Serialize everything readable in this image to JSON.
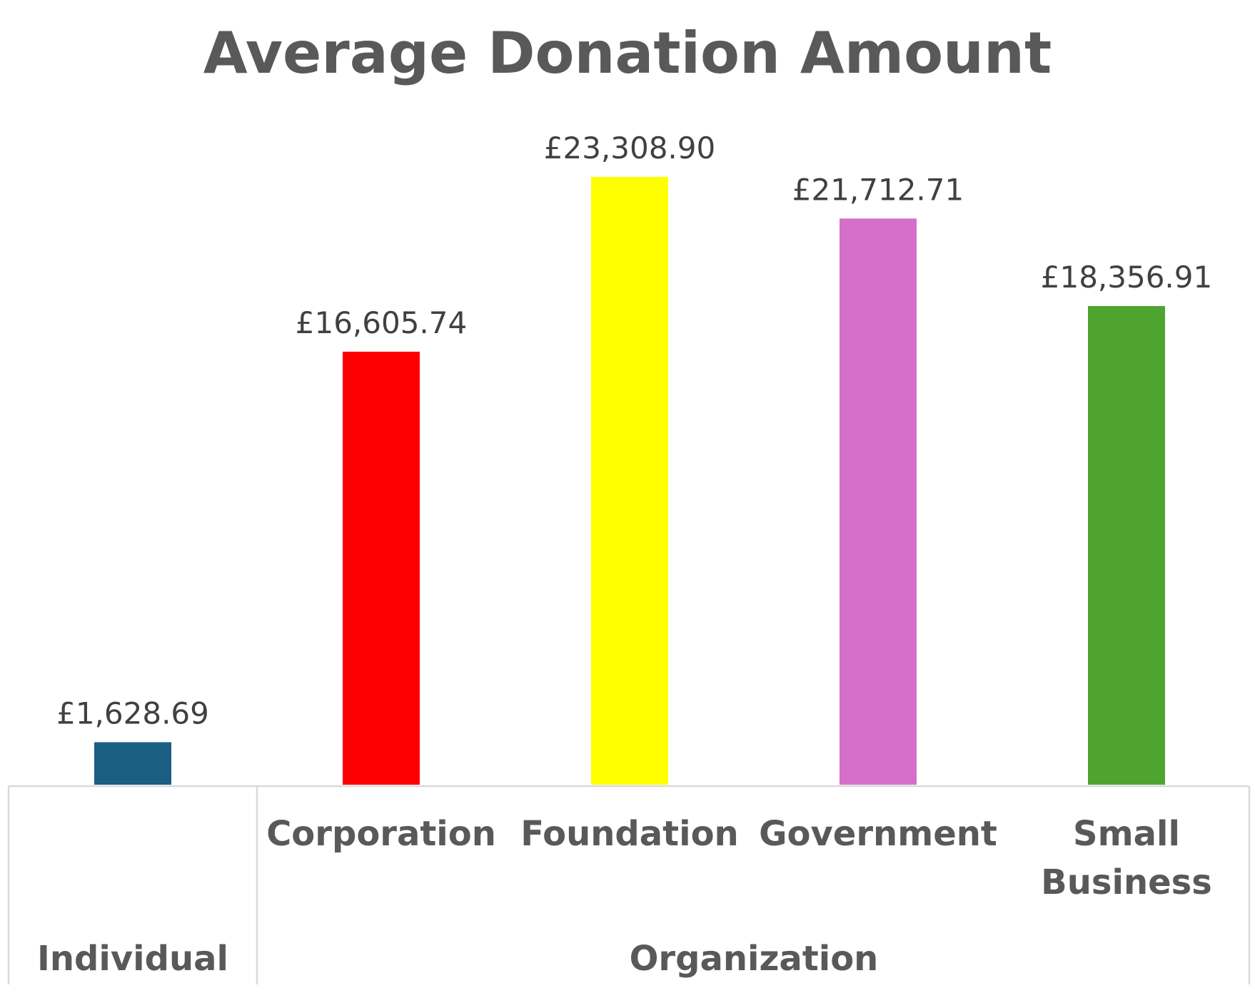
{
  "chart_data": {
    "type": "bar",
    "title": "Average Donation Amount",
    "xlabel": "",
    "ylabel": "",
    "ylim": [
      0,
      24000
    ],
    "grid": false,
    "legend": "none",
    "groups": [
      {
        "label": "Individual",
        "categories": [
          ""
        ]
      },
      {
        "label": "Organization",
        "categories": [
          "Corporation",
          "Foundation",
          "Government",
          "Small Business"
        ]
      }
    ],
    "categories": [
      "",
      "Corporation",
      "Foundation",
      "Government",
      "Small Business"
    ],
    "category_lines": [
      [],
      [
        "Corporation"
      ],
      [
        "Foundation"
      ],
      [
        "Government"
      ],
      [
        "Small",
        "Business"
      ]
    ],
    "values": [
      1628.69,
      16605.74,
      23308.9,
      21712.71,
      18356.91
    ],
    "data_labels": [
      "£1,628.69",
      "£16,605.74",
      "£23,308.90",
      "£21,712.71",
      "£18,356.91"
    ],
    "colors": [
      "#1a5e82",
      "#ff0000",
      "#ffff00",
      "#d66fc9",
      "#4fa42f"
    ]
  }
}
